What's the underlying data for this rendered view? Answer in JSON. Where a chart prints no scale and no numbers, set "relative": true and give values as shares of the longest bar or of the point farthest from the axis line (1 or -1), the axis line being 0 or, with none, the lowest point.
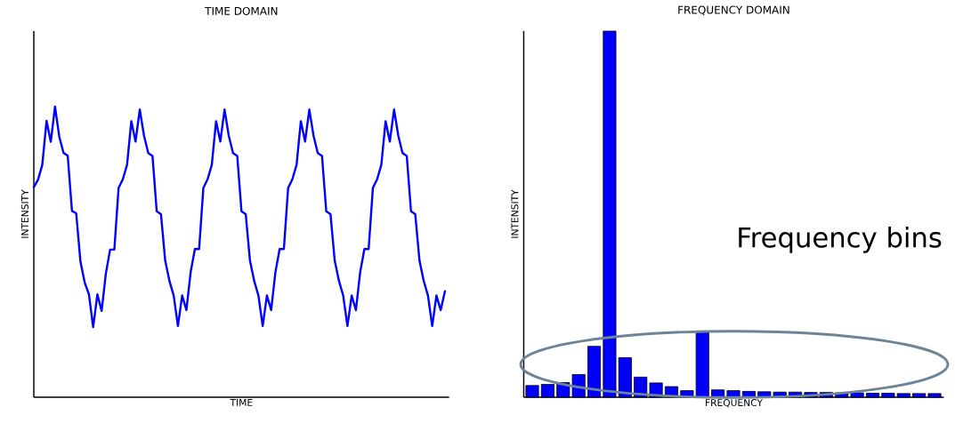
{
  "chart_data": [
    {
      "type": "line",
      "title": "TIME DOMAIN",
      "xlabel": "TIME",
      "ylabel": "INTENSITY",
      "relative": true,
      "color": "#0000ff",
      "categories": [
        null,
        null,
        null,
        null,
        null,
        null,
        null,
        null,
        null,
        null,
        null,
        null,
        null,
        null,
        null,
        null,
        null,
        null,
        null,
        null,
        null,
        null,
        null,
        null,
        null,
        null,
        null,
        null,
        null,
        null,
        null,
        null,
        null,
        null,
        null,
        null,
        null,
        null,
        null,
        null,
        null,
        null,
        null,
        null,
        null,
        null,
        null,
        null,
        null,
        null,
        null,
        null,
        null,
        null,
        null,
        null,
        null,
        null,
        null,
        null,
        null,
        null,
        null,
        null,
        null,
        null,
        null,
        null,
        null,
        null,
        null,
        null,
        null,
        null,
        null,
        null,
        null,
        null,
        null,
        null,
        null,
        null,
        null,
        null,
        null,
        null,
        null,
        null,
        null,
        null,
        null,
        null,
        null,
        null,
        null,
        null,
        null,
        null
      ],
      "values": [
        0.723,
        0.749,
        0.8,
        0.951,
        0.879,
        1,
        0.897,
        0.841,
        0.831,
        0.641,
        0.633,
        0.467,
        0.395,
        0.354,
        0.241,
        0.354,
        0.297,
        0.426,
        0.508,
        0.508,
        0.72,
        0.75,
        0.8,
        0.95,
        0.88,
        0.99,
        0.9,
        0.84,
        0.83,
        0.64,
        0.63,
        0.47,
        0.4,
        0.35,
        0.245,
        0.35,
        0.3,
        0.43,
        0.51,
        0.51,
        0.72,
        0.75,
        0.8,
        0.95,
        0.88,
        0.99,
        0.9,
        0.84,
        0.83,
        0.64,
        0.63,
        0.47,
        0.4,
        0.35,
        0.245,
        0.35,
        0.3,
        0.43,
        0.51,
        0.51,
        0.72,
        0.75,
        0.8,
        0.95,
        0.88,
        0.99,
        0.9,
        0.84,
        0.83,
        0.64,
        0.63,
        0.47,
        0.4,
        0.35,
        0.245,
        0.35,
        0.3,
        0.43,
        0.51,
        0.51,
        0.72,
        0.75,
        0.8,
        0.95,
        0.88,
        0.99,
        0.9,
        0.84,
        0.83,
        0.64,
        0.63,
        0.47,
        0.4,
        0.35,
        0.245,
        0.35,
        0.3,
        0.365
      ]
    },
    {
      "type": "bar",
      "title": "FREQUENCY DOMAIN",
      "xlabel": "FREQUENCY",
      "ylabel": "INTENSITY",
      "relative": true,
      "color": "#0000ff",
      "categories": [
        null,
        null,
        null,
        null,
        null,
        null,
        null,
        null,
        null,
        null,
        null,
        null,
        null,
        null,
        null,
        null,
        null,
        null,
        null,
        null,
        null,
        null,
        null,
        null,
        null,
        null,
        null
      ],
      "values": [
        0.032,
        0.035,
        0.04,
        0.062,
        0.139,
        1,
        0.108,
        0.055,
        0.039,
        0.029,
        0.018,
        0.177,
        0.02,
        0.018,
        0.016,
        0.015,
        0.014,
        0.014,
        0.013,
        0.013,
        0.012,
        0.012,
        0.011,
        0.011,
        0.01,
        0.01,
        0.01
      ],
      "annotations": [
        "Frequency bins"
      ]
    }
  ]
}
